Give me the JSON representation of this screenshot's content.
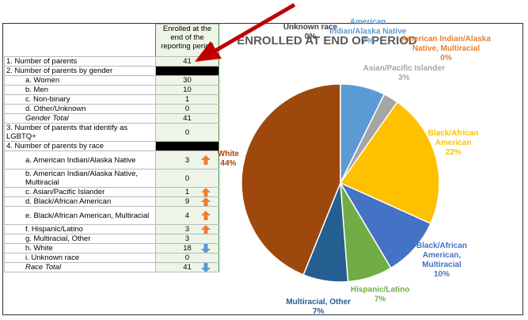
{
  "table": {
    "header_value": "Enrolled at the end of the reporting period",
    "rows": [
      {
        "label": "1. Number of parents",
        "value": "41",
        "style": "top",
        "arrow": ""
      },
      {
        "label": "2. Number of parents by gender",
        "value": "",
        "style": "section",
        "arrow": ""
      },
      {
        "label": "a. Women",
        "value": "30",
        "style": "sub",
        "arrow": ""
      },
      {
        "label": "b. Men",
        "value": "10",
        "style": "sub",
        "arrow": ""
      },
      {
        "label": "c. Non-binary",
        "value": "1",
        "style": "sub",
        "arrow": ""
      },
      {
        "label": "d. Other/Unknown",
        "value": "0",
        "style": "sub",
        "arrow": ""
      },
      {
        "label": "Gender Total",
        "value": "41",
        "style": "total",
        "arrow": ""
      },
      {
        "label": "3. Number of parents that identify as LGBTQ+",
        "value": "0",
        "style": "topwrap",
        "arrow": ""
      },
      {
        "label": "4. Number of parents by race",
        "value": "",
        "style": "section",
        "arrow": ""
      },
      {
        "label": "a. American Indian/Alaska Native",
        "value": "3",
        "style": "subwrap",
        "arrow": "up"
      },
      {
        "label": "b. American Indian/Alaska Native, Multiracial",
        "value": "0",
        "style": "subwrap",
        "arrow": ""
      },
      {
        "label": "c. Asian/Pacific Islander",
        "value": "1",
        "style": "sub",
        "arrow": "up"
      },
      {
        "label": "d. Black/African American",
        "value": "9",
        "style": "sub",
        "arrow": "up"
      },
      {
        "label": "e. Black/African American, Multiracial",
        "value": "4",
        "style": "subwrap",
        "arrow": "up"
      },
      {
        "label": "f. Hispanic/Latino",
        "value": "3",
        "style": "sub",
        "arrow": "up"
      },
      {
        "label": "g. Multiracial, Other",
        "value": "3",
        "style": "sub",
        "arrow": ""
      },
      {
        "label": "h. White",
        "value": "18",
        "style": "sub",
        "arrow": "down"
      },
      {
        "label": "i. Unknown race",
        "value": "0",
        "style": "sub",
        "arrow": ""
      },
      {
        "label": "Race Total",
        "value": "41",
        "style": "total",
        "arrow": "down"
      }
    ]
  },
  "colors": {
    "arrow_up": "#ED7D31",
    "arrow_down": "#5B9BD5",
    "pointer_arrow": "#C00000"
  },
  "chart_data": {
    "type": "pie",
    "title": "ENROLLED AT END OF PERIOD",
    "slices": [
      {
        "label": "American Indian/Alaska Native",
        "value": 7,
        "count": 3,
        "pct": "7%",
        "color": "#5B9BD5",
        "label_color": "#5B9BD5"
      },
      {
        "label": "Asian/Pacific Islander",
        "value": 3,
        "count": 1,
        "pct": "3%",
        "color": "#A5A5A5",
        "label_color": "#A5A5A5"
      },
      {
        "label": "American Indian/Alaska Native, Multiracial",
        "value": 0,
        "count": 0,
        "pct": "0%",
        "color": "#ED7D31",
        "label_color": "#ED7D31"
      },
      {
        "label": "Black/African American",
        "value": 22,
        "count": 9,
        "pct": "22%",
        "color": "#FFC000",
        "label_color": "#FFC000"
      },
      {
        "label": "Black/African American, Multiracial",
        "value": 10,
        "count": 4,
        "pct": "10%",
        "color": "#4472C4",
        "label_color": "#4472C4"
      },
      {
        "label": "Hispanic/Latino",
        "value": 7,
        "count": 3,
        "pct": "7%",
        "color": "#70AD47",
        "label_color": "#70AD47"
      },
      {
        "label": "Multiracial, Other",
        "value": 7,
        "count": 3,
        "pct": "7%",
        "color": "#255E91",
        "label_color": "#255E91"
      },
      {
        "label": "White",
        "value": 44,
        "count": 18,
        "pct": "44%",
        "color": "#9E480E",
        "label_color": "#9E480E"
      },
      {
        "label": "Unknown race",
        "value": 0,
        "count": 0,
        "pct": "0%",
        "color": "#636363",
        "label_color": "#404040"
      }
    ]
  }
}
